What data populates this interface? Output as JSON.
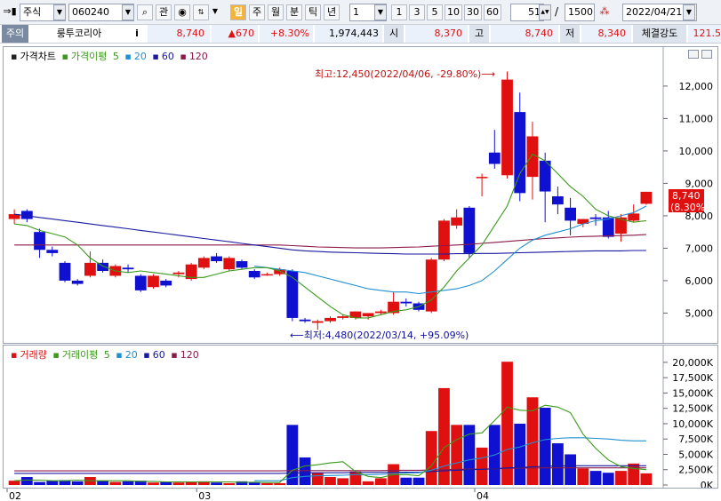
{
  "toolbar": {
    "market": "주식",
    "code": "060240",
    "btn_search": "",
    "btn_watch": "관",
    "period_day": "일",
    "period_week": "주",
    "period_month": "월",
    "period_minute": "분",
    "period_tick": "틱",
    "period_year": "년",
    "interval_value": "1",
    "intervals": [
      "1",
      "3",
      "5",
      "10",
      "30",
      "60"
    ],
    "view_count": "51",
    "total_count": "1500",
    "date": "2022/04/21"
  },
  "quote": {
    "tag": "주의",
    "name": "룽투코리아",
    "info": "i",
    "price": "8,740",
    "change": "▲670",
    "change_pct": "+8.30%",
    "volume": "1,974,443",
    "open_label": "시",
    "open": "8,370",
    "high_label": "고",
    "high": "8,740",
    "low_label": "저",
    "low": "8,340",
    "strength_label": "체결강도",
    "strength": "121.5"
  },
  "price_legend": {
    "title": "가격차트",
    "ma_label": "가격이평",
    "ma5": "5",
    "ma20": "20",
    "ma60": "60",
    "ma120": "120"
  },
  "volume_legend": {
    "title": "거래량",
    "ma_label": "거래이평",
    "ma5": "5",
    "ma20": "20",
    "ma60": "60",
    "ma120": "120"
  },
  "annotations": {
    "high_label": "최고:12,450(2022/04/06, -29.80%)⟶",
    "low_label": "⟵최저:4,480(2022/03/14, +95.09%)",
    "current_price": "8,740",
    "current_pct": "(8.30%)"
  },
  "colors": {
    "up": "#e01010",
    "down": "#1010d0",
    "ma5": "#3a9a1a",
    "ma20": "#2090d0",
    "ma60": "#1a1aa0",
    "ma120": "#8a1a4a"
  },
  "chart_data": [
    {
      "type": "candlestick",
      "title": "가격차트",
      "x_labels": [
        "02",
        "03",
        "04"
      ],
      "x_label_index": [
        0,
        15,
        37
      ],
      "ylim": [
        4300,
        12600
      ],
      "yticks": [
        5000,
        6000,
        7000,
        8000,
        9000,
        10000,
        11000,
        12000
      ],
      "ytick_labels": [
        "5,000",
        "6,000",
        "7,000",
        "8,000",
        "9,000",
        "10,000",
        "11,000",
        "12,000"
      ],
      "candles": [
        {
          "o": 7900,
          "h": 8200,
          "l": 7750,
          "c": 8050
        },
        {
          "o": 8150,
          "h": 8200,
          "l": 7800,
          "c": 7900
        },
        {
          "o": 7500,
          "h": 7600,
          "l": 6700,
          "c": 6950
        },
        {
          "o": 6950,
          "h": 7050,
          "l": 6750,
          "c": 6850
        },
        {
          "o": 6550,
          "h": 6600,
          "l": 5950,
          "c": 6000
        },
        {
          "o": 6000,
          "h": 6050,
          "l": 5850,
          "c": 5900
        },
        {
          "o": 6150,
          "h": 6900,
          "l": 6100,
          "c": 6550
        },
        {
          "o": 6550,
          "h": 6650,
          "l": 6250,
          "c": 6300
        },
        {
          "o": 6150,
          "h": 6500,
          "l": 6100,
          "c": 6450
        },
        {
          "o": 6400,
          "h": 6500,
          "l": 6250,
          "c": 6350
        },
        {
          "o": 6150,
          "h": 6200,
          "l": 5650,
          "c": 5700
        },
        {
          "o": 5800,
          "h": 6200,
          "l": 5750,
          "c": 6150
        },
        {
          "o": 6000,
          "h": 6050,
          "l": 5800,
          "c": 5850
        },
        {
          "o": 6200,
          "h": 6300,
          "l": 6100,
          "c": 6250
        },
        {
          "o": 6050,
          "h": 6550,
          "l": 6000,
          "c": 6500
        },
        {
          "o": 6400,
          "h": 6750,
          "l": 6350,
          "c": 6700
        },
        {
          "o": 6750,
          "h": 6850,
          "l": 6550,
          "c": 6600
        },
        {
          "o": 6350,
          "h": 6750,
          "l": 6300,
          "c": 6700
        },
        {
          "o": 6600,
          "h": 6650,
          "l": 6350,
          "c": 6400
        },
        {
          "o": 6300,
          "h": 6350,
          "l": 6050,
          "c": 6100
        },
        {
          "o": 6200,
          "h": 6250,
          "l": 6150,
          "c": 6200
        },
        {
          "o": 6200,
          "h": 6400,
          "l": 6150,
          "c": 6350
        },
        {
          "o": 6300,
          "h": 6350,
          "l": 4750,
          "c": 4850
        },
        {
          "o": 4800,
          "h": 4850,
          "l": 4700,
          "c": 4750
        },
        {
          "o": 4700,
          "h": 4800,
          "l": 4480,
          "c": 4750
        },
        {
          "o": 4750,
          "h": 4900,
          "l": 4700,
          "c": 4850
        },
        {
          "o": 4850,
          "h": 4950,
          "l": 4800,
          "c": 4900
        },
        {
          "o": 4850,
          "h": 5050,
          "l": 4800,
          "c": 5050
        },
        {
          "o": 4900,
          "h": 5000,
          "l": 4800,
          "c": 5000
        },
        {
          "o": 5000,
          "h": 5100,
          "l": 4950,
          "c": 5050
        },
        {
          "o": 5000,
          "h": 5650,
          "l": 4950,
          "c": 5350
        },
        {
          "o": 5350,
          "h": 5450,
          "l": 5200,
          "c": 5300
        },
        {
          "o": 5300,
          "h": 5350,
          "l": 5050,
          "c": 5100
        },
        {
          "o": 5050,
          "h": 6700,
          "l": 5000,
          "c": 6650
        },
        {
          "o": 6650,
          "h": 7900,
          "l": 6600,
          "c": 7850
        },
        {
          "o": 7700,
          "h": 8200,
          "l": 7600,
          "c": 7950
        },
        {
          "o": 8250,
          "h": 8300,
          "l": 6700,
          "c": 6850
        },
        {
          "o": 9200,
          "h": 9300,
          "l": 8600,
          "c": 9200
        },
        {
          "o": 9950,
          "h": 10650,
          "l": 9450,
          "c": 9600
        },
        {
          "o": 9250,
          "h": 12450,
          "l": 9150,
          "c": 12200
        },
        {
          "o": 11200,
          "h": 11800,
          "l": 8450,
          "c": 8700
        },
        {
          "o": 9200,
          "h": 10900,
          "l": 8500,
          "c": 10450
        },
        {
          "o": 9700,
          "h": 9950,
          "l": 7800,
          "c": 8750
        },
        {
          "o": 8600,
          "h": 8900,
          "l": 8050,
          "c": 8350
        },
        {
          "o": 8250,
          "h": 8550,
          "l": 7400,
          "c": 7850
        },
        {
          "o": 7750,
          "h": 7900,
          "l": 7650,
          "c": 7900
        },
        {
          "o": 7950,
          "h": 8050,
          "l": 7700,
          "c": 7900
        },
        {
          "o": 7950,
          "h": 8150,
          "l": 7300,
          "c": 7350
        },
        {
          "o": 7450,
          "h": 8050,
          "l": 7200,
          "c": 7950
        },
        {
          "o": 7850,
          "h": 8350,
          "l": 7800,
          "c": 8070
        },
        {
          "o": 8370,
          "h": 8740,
          "l": 8340,
          "c": 8740
        }
      ],
      "ma5": [
        7750,
        7700,
        7550,
        7450,
        7350,
        7100,
        6700,
        6450,
        6300,
        6250,
        6300,
        6250,
        6200,
        6150,
        6100,
        6100,
        6200,
        6300,
        6350,
        6400,
        6400,
        6300,
        6100,
        5800,
        5500,
        5200,
        4950,
        4850,
        4850,
        4950,
        5050,
        5100,
        5200,
        5400,
        5800,
        6300,
        6700,
        7100,
        7700,
        8300,
        9300,
        9900,
        9700,
        9300,
        8900,
        8600,
        8200,
        8000,
        7900,
        7800,
        7850
      ],
      "ma20": [
        null,
        null,
        null,
        null,
        null,
        null,
        null,
        null,
        null,
        null,
        null,
        null,
        null,
        null,
        null,
        null,
        null,
        null,
        null,
        6450,
        6400,
        6350,
        6300,
        6250,
        6150,
        6050,
        5950,
        5850,
        5750,
        5700,
        5650,
        5650,
        5600,
        5650,
        5700,
        5750,
        5850,
        6000,
        6300,
        6650,
        7000,
        7250,
        7400,
        7500,
        7600,
        7750,
        7850,
        7900,
        8000,
        8100,
        8300
      ],
      "ma60": [
        8050,
        8000,
        7950,
        7900,
        7850,
        7800,
        7750,
        7700,
        7650,
        7600,
        7550,
        7500,
        7450,
        7400,
        7350,
        7300,
        7250,
        7200,
        7150,
        7100,
        7050,
        7000,
        6950,
        6920,
        6900,
        6880,
        6870,
        6860,
        6850,
        6840,
        6830,
        6820,
        6820,
        6820,
        6820,
        6830,
        6830,
        6840,
        6840,
        6850,
        6860,
        6870,
        6880,
        6890,
        6900,
        6910,
        6920,
        6920,
        6920,
        6930,
        6930
      ],
      "ma120": [
        7100,
        7100,
        7100,
        7100,
        7100,
        7100,
        7100,
        7100,
        7100,
        7100,
        7100,
        7100,
        7100,
        7100,
        7100,
        7100,
        7100,
        7100,
        7100,
        7100,
        7100,
        7100,
        7080,
        7060,
        7040,
        7030,
        7020,
        7010,
        7010,
        7010,
        7020,
        7030,
        7040,
        7060,
        7080,
        7100,
        7120,
        7150,
        7180,
        7210,
        7240,
        7270,
        7300,
        7320,
        7340,
        7360,
        7370,
        7380,
        7390,
        7400,
        7420
      ]
    },
    {
      "type": "bar",
      "title": "거래량",
      "ylim": [
        0,
        21000
      ],
      "yticks": [
        0,
        2500,
        5000,
        7500,
        10000,
        12500,
        15000,
        17500,
        20000
      ],
      "ytick_labels": [
        "0K",
        "2,500K",
        "5,000K",
        "7,500K",
        "10,000K",
        "12,500K",
        "15,000K",
        "17,500K",
        "20,000K"
      ],
      "volumes": [
        700,
        1300,
        500,
        700,
        800,
        600,
        1300,
        700,
        500,
        600,
        700,
        400,
        500,
        400,
        500,
        600,
        400,
        300,
        600,
        400,
        300,
        300,
        9800,
        4500,
        2000,
        1300,
        1100,
        2200,
        600,
        1100,
        3400,
        1200,
        1200,
        8800,
        15800,
        9800,
        9800,
        6100,
        9800,
        20100,
        10000,
        14300,
        12600,
        6800,
        5000,
        2700,
        2300,
        2000,
        2300,
        3500,
        1900
      ],
      "vol_ma5": [
        700,
        800,
        800,
        700,
        700,
        800,
        700,
        700,
        700,
        700,
        600,
        600,
        500,
        500,
        500,
        500,
        500,
        500,
        450,
        450,
        400,
        400,
        2400,
        3100,
        3300,
        3600,
        3800,
        2200,
        1400,
        1200,
        1700,
        1700,
        1500,
        3100,
        6100,
        7400,
        8300,
        8500,
        10500,
        12700,
        12200,
        12100,
        13000,
        12700,
        11800,
        8300,
        6000,
        4100,
        3000,
        2700,
        2500
      ],
      "vol_ma20": [
        null,
        null,
        null,
        null,
        null,
        null,
        null,
        null,
        null,
        null,
        null,
        null,
        null,
        null,
        null,
        null,
        null,
        null,
        null,
        700,
        700,
        700,
        1200,
        1400,
        1500,
        1550,
        1600,
        1700,
        1700,
        1750,
        1900,
        1950,
        2000,
        2400,
        3100,
        3600,
        4100,
        4400,
        4900,
        5800,
        6200,
        6900,
        7400,
        7600,
        7700,
        7700,
        7600,
        7500,
        7300,
        7200,
        7200
      ],
      "vol_ma60": [
        1900,
        1900,
        1900,
        1900,
        1900,
        1900,
        1900,
        1900,
        1900,
        1900,
        1900,
        1900,
        1900,
        1900,
        1900,
        1900,
        1900,
        1900,
        1900,
        1900,
        1900,
        1900,
        1950,
        2000,
        2000,
        2000,
        2000,
        2050,
        2050,
        2050,
        2100,
        2100,
        2100,
        2200,
        2300,
        2400,
        2500,
        2550,
        2650,
        2800,
        2850,
        2950,
        3050,
        3100,
        3150,
        3150,
        3150,
        3150,
        3150,
        3150,
        3150
      ],
      "vol_ma120": [
        2300,
        2300,
        2300,
        2300,
        2300,
        2300,
        2300,
        2300,
        2300,
        2300,
        2300,
        2300,
        2300,
        2300,
        2300,
        2300,
        2300,
        2300,
        2300,
        2300,
        2300,
        2300,
        2350,
        2350,
        2350,
        2350,
        2350,
        2350,
        2350,
        2350,
        2400,
        2400,
        2400,
        2450,
        2500,
        2550,
        2600,
        2600,
        2650,
        2700,
        2750,
        2750,
        2800,
        2800,
        2800,
        2800,
        2800,
        2800,
        2800,
        2800,
        2800
      ]
    }
  ]
}
